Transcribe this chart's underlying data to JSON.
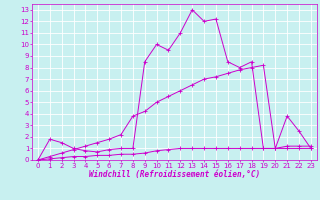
{
  "xlabel": "Windchill (Refroidissement éolien,°C)",
  "bg_color": "#c8f0f0",
  "line_color": "#cc00cc",
  "grid_color": "#ffffff",
  "x_ticks": [
    0,
    1,
    2,
    3,
    4,
    5,
    6,
    7,
    8,
    9,
    10,
    11,
    12,
    13,
    14,
    15,
    16,
    17,
    18,
    19,
    20,
    21,
    22,
    23
  ],
  "y_ticks": [
    0,
    1,
    2,
    3,
    4,
    5,
    6,
    7,
    8,
    9,
    10,
    11,
    12,
    13
  ],
  "xlim": [
    -0.5,
    23.5
  ],
  "ylim": [
    0,
    13.5
  ],
  "line1_x": [
    0,
    1,
    2,
    3,
    4,
    5,
    6,
    7,
    8,
    9,
    10,
    11,
    12,
    13,
    14,
    15,
    16,
    17,
    18,
    19,
    20,
    21,
    22,
    23
  ],
  "line1_y": [
    0.0,
    1.8,
    1.5,
    1.0,
    0.8,
    0.7,
    0.9,
    1.0,
    1.0,
    8.5,
    10.0,
    9.5,
    11.0,
    13.0,
    12.0,
    12.2,
    8.5,
    8.0,
    8.5,
    1.0,
    1.0,
    3.8,
    2.5,
    1.0
  ],
  "line2_x": [
    0,
    1,
    2,
    3,
    4,
    5,
    6,
    7,
    8,
    9,
    10,
    11,
    12,
    13,
    14,
    15,
    16,
    17,
    18,
    19,
    20,
    21,
    22,
    23
  ],
  "line2_y": [
    0.0,
    0.3,
    0.6,
    0.9,
    1.2,
    1.5,
    1.8,
    2.2,
    3.8,
    4.2,
    5.0,
    5.5,
    6.0,
    6.5,
    7.0,
    7.2,
    7.5,
    7.8,
    8.0,
    8.2,
    1.0,
    1.2,
    1.2,
    1.2
  ],
  "line3_x": [
    0,
    1,
    2,
    3,
    4,
    5,
    6,
    7,
    8,
    9,
    10,
    11,
    12,
    13,
    14,
    15,
    16,
    17,
    18,
    19,
    20,
    21,
    22,
    23
  ],
  "line3_y": [
    0.0,
    0.1,
    0.2,
    0.3,
    0.3,
    0.4,
    0.4,
    0.5,
    0.5,
    0.6,
    0.8,
    0.9,
    1.0,
    1.0,
    1.0,
    1.0,
    1.0,
    1.0,
    1.0,
    1.0,
    1.0,
    1.0,
    1.0,
    1.0
  ],
  "xlabel_fontsize": 5.5,
  "tick_fontsize": 5,
  "linewidth": 0.7,
  "markersize": 2.5
}
